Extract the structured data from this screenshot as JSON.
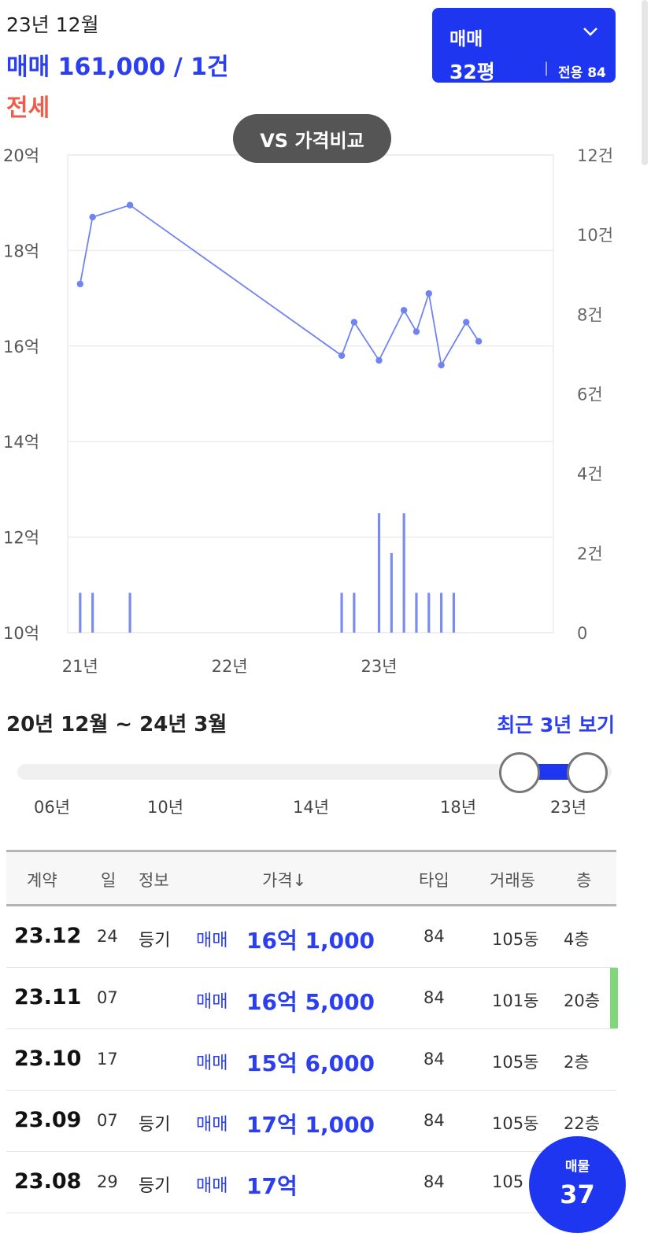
{
  "header": {
    "period": "23년 12월",
    "sale_summary": "매매 161,000 / 1건",
    "jeonse_label": "전세"
  },
  "type_selector": {
    "label": "매매",
    "chevron": "chevron-down-icon",
    "pyeong": "32평",
    "separator": "|",
    "area": "전용 84㎡"
  },
  "vs_button": {
    "label": "VS 가격비교"
  },
  "colors": {
    "accent": "#1f36f0",
    "sale_text": "#2b3ff0",
    "jeonse": "#f05b4a",
    "line": "#6f84f0",
    "bar": "#7a8cf0",
    "row_marker": "#82d67a"
  },
  "chart_data": {
    "type": "line",
    "x_tick_labels": [
      "21년",
      "22년",
      "23년"
    ],
    "left_axis_ticks": [
      "20억",
      "18억",
      "16억",
      "14억",
      "12억",
      "10억"
    ],
    "right_axis_ticks": [
      "12건",
      "10건",
      "8건",
      "6건",
      "4건",
      "2건",
      "0"
    ],
    "ylim": [
      10,
      20
    ],
    "y2lim": [
      0,
      12
    ],
    "x_range": [
      "2020-12",
      "2024-03"
    ],
    "grid": true,
    "price_series": [
      {
        "date": "2021-01",
        "value": 17.3
      },
      {
        "date": "2021-02",
        "value": 18.7
      },
      {
        "date": "2021-05",
        "value": 18.95
      },
      {
        "date": "2022-10",
        "value": 15.8
      },
      {
        "date": "2022-11",
        "value": 16.5
      },
      {
        "date": "2023-01",
        "value": 15.7
      },
      {
        "date": "2023-03",
        "value": 16.75
      },
      {
        "date": "2023-04",
        "value": 16.3
      },
      {
        "date": "2023-05",
        "value": 17.1
      },
      {
        "date": "2023-06",
        "value": 15.6
      },
      {
        "date": "2023-08",
        "value": 16.5
      },
      {
        "date": "2023-09",
        "value": 16.1
      }
    ],
    "volume_series": [
      {
        "date": "2021-01",
        "value": 1
      },
      {
        "date": "2021-02",
        "value": 1
      },
      {
        "date": "2021-05",
        "value": 1
      },
      {
        "date": "2022-10",
        "value": 1
      },
      {
        "date": "2022-11",
        "value": 1
      },
      {
        "date": "2023-01",
        "value": 3
      },
      {
        "date": "2023-02",
        "value": 2
      },
      {
        "date": "2023-03",
        "value": 3
      },
      {
        "date": "2023-04",
        "value": 1
      },
      {
        "date": "2023-05",
        "value": 1
      },
      {
        "date": "2023-06",
        "value": 1
      },
      {
        "date": "2023-07",
        "value": 1
      }
    ]
  },
  "range": {
    "text": "20년 12월 ~ 24년 3월",
    "recent_link": "최근 3년 보기"
  },
  "slider": {
    "ticks": [
      "06년",
      "10년",
      "14년",
      "18년",
      "23년"
    ],
    "selected_start": "20년 12월",
    "selected_end": "24년 3월"
  },
  "table": {
    "headers": {
      "contract": "계약",
      "day": "일",
      "info": "정보",
      "price": "가격↓",
      "type": "타입",
      "dong": "거래동",
      "floor": "층"
    },
    "rows": [
      {
        "month": "23.12",
        "day": "24",
        "info": "등기",
        "kind": "매매",
        "price": "16억 1,000",
        "type": "84",
        "dong": "105동",
        "floor": "4층"
      },
      {
        "month": "23.11",
        "day": "07",
        "info": "",
        "kind": "매매",
        "price": "16억 5,000",
        "type": "84",
        "dong": "101동",
        "floor": "20층"
      },
      {
        "month": "23.10",
        "day": "17",
        "info": "",
        "kind": "매매",
        "price": "15억 6,000",
        "type": "84",
        "dong": "105동",
        "floor": "2층"
      },
      {
        "month": "23.09",
        "day": "07",
        "info": "등기",
        "kind": "매매",
        "price": "17억 1,000",
        "type": "84",
        "dong": "105동",
        "floor": "22층"
      },
      {
        "month": "23.08",
        "day": "29",
        "info": "등기",
        "kind": "매매",
        "price": "17억",
        "type": "84",
        "dong": "105",
        "floor": ""
      }
    ]
  },
  "fab": {
    "label": "매물",
    "count": "37"
  }
}
